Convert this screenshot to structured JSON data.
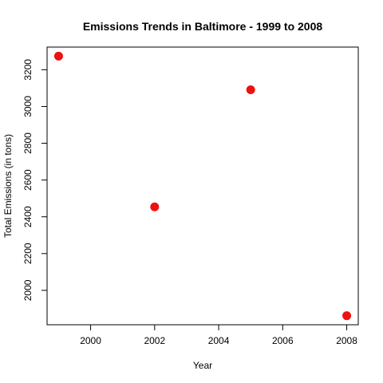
{
  "chart_data": {
    "type": "scatter",
    "title": "Emissions Trends in Baltimore - 1999 to 2008",
    "xlabel": "Year",
    "ylabel": "Total Emissions (in tons)",
    "x": [
      1999,
      2002,
      2005,
      2008
    ],
    "y": [
      3274,
      2454,
      3091,
      1862
    ],
    "x_ticks": [
      2000,
      2002,
      2004,
      2006,
      2008
    ],
    "y_ticks": [
      2000,
      2200,
      2400,
      2600,
      2800,
      3000,
      3200
    ],
    "xlim": [
      1998.64,
      2008.36
    ],
    "ylim": [
      1812.9,
      3323.1
    ],
    "grid": false,
    "point_color": "#ee1111"
  }
}
